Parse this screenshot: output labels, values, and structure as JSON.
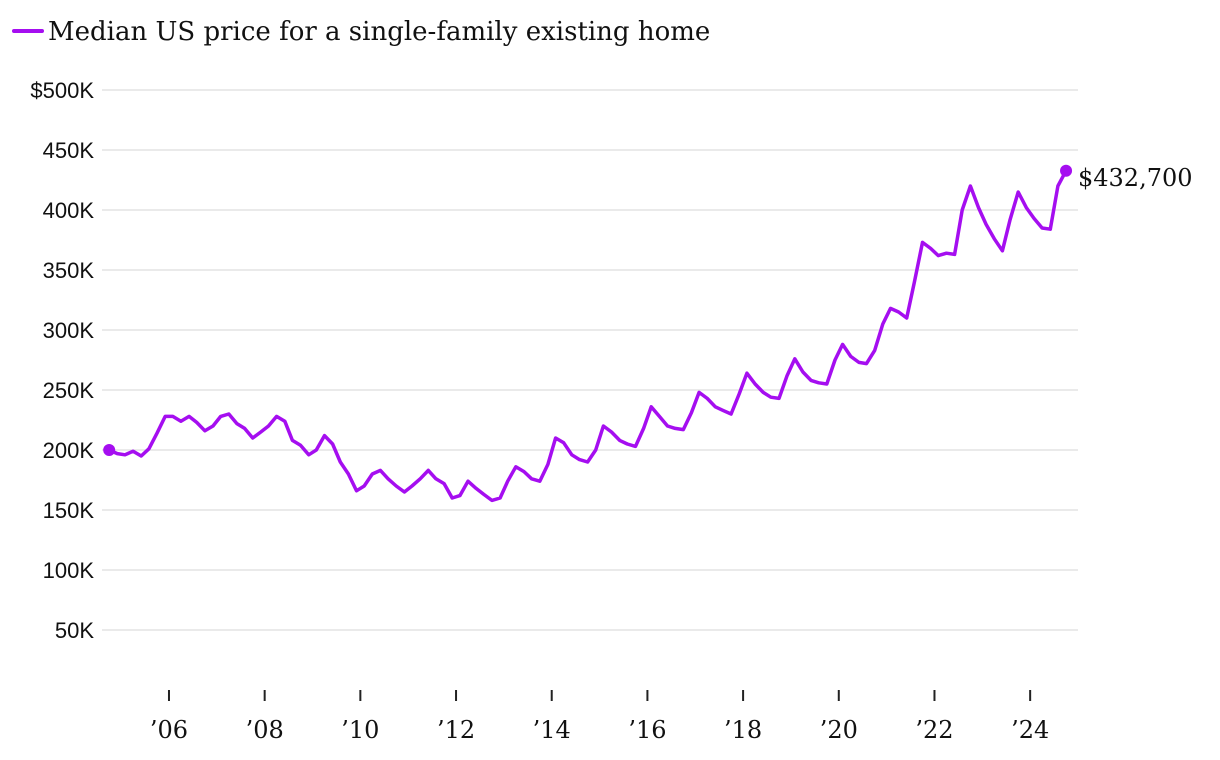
{
  "legend": {
    "label": "Median US price for a single-family existing home"
  },
  "colors": {
    "series": "#a50ef0",
    "grid": "#dedede",
    "text": "#111111"
  },
  "chart_data": {
    "type": "line",
    "title": "",
    "xlabel": "",
    "ylabel": "",
    "ylim": [
      0,
      500000
    ],
    "y_ticks": [
      50000,
      100000,
      150000,
      200000,
      250000,
      300000,
      350000,
      400000,
      450000,
      500000
    ],
    "y_tick_labels": [
      "50K",
      "100K",
      "150K",
      "200K",
      "250K",
      "300K",
      "350K",
      "400K",
      "450K",
      "$500K"
    ],
    "xlim": [
      2004.6,
      2025.0
    ],
    "x_ticks": [
      2006,
      2008,
      2010,
      2012,
      2014,
      2016,
      2018,
      2020,
      2022,
      2024
    ],
    "x_tick_labels": [
      "’06",
      "’08",
      "’10",
      "’12",
      "’14",
      "’16",
      "’18",
      "’20",
      "’22",
      "’24"
    ],
    "grid": true,
    "end_label": "$432,700",
    "series": [
      {
        "name": "Median US price for a single-family existing home",
        "points": [
          [
            2004.75,
            200000
          ],
          [
            2004.92,
            197000
          ],
          [
            2005.08,
            196000
          ],
          [
            2005.25,
            199000
          ],
          [
            2005.42,
            195000
          ],
          [
            2005.58,
            201000
          ],
          [
            2005.75,
            214000
          ],
          [
            2005.92,
            228000
          ],
          [
            2006.08,
            228000
          ],
          [
            2006.25,
            224000
          ],
          [
            2006.42,
            228000
          ],
          [
            2006.58,
            223000
          ],
          [
            2006.75,
            216000
          ],
          [
            2006.92,
            220000
          ],
          [
            2007.08,
            228000
          ],
          [
            2007.25,
            230000
          ],
          [
            2007.42,
            222000
          ],
          [
            2007.58,
            218000
          ],
          [
            2007.75,
            210000
          ],
          [
            2007.92,
            215000
          ],
          [
            2008.08,
            220000
          ],
          [
            2008.25,
            228000
          ],
          [
            2008.42,
            224000
          ],
          [
            2008.58,
            208000
          ],
          [
            2008.75,
            204000
          ],
          [
            2008.92,
            196000
          ],
          [
            2009.08,
            200000
          ],
          [
            2009.25,
            212000
          ],
          [
            2009.42,
            205000
          ],
          [
            2009.58,
            190000
          ],
          [
            2009.75,
            180000
          ],
          [
            2009.92,
            166000
          ],
          [
            2010.08,
            170000
          ],
          [
            2010.25,
            180000
          ],
          [
            2010.42,
            183000
          ],
          [
            2010.58,
            176000
          ],
          [
            2010.75,
            170000
          ],
          [
            2010.92,
            165000
          ],
          [
            2011.08,
            170000
          ],
          [
            2011.25,
            176000
          ],
          [
            2011.42,
            183000
          ],
          [
            2011.58,
            176000
          ],
          [
            2011.75,
            172000
          ],
          [
            2011.92,
            160000
          ],
          [
            2012.08,
            162000
          ],
          [
            2012.25,
            174000
          ],
          [
            2012.42,
            168000
          ],
          [
            2012.58,
            163000
          ],
          [
            2012.75,
            158000
          ],
          [
            2012.92,
            160000
          ],
          [
            2013.08,
            174000
          ],
          [
            2013.25,
            186000
          ],
          [
            2013.42,
            182000
          ],
          [
            2013.58,
            176000
          ],
          [
            2013.75,
            174000
          ],
          [
            2013.92,
            188000
          ],
          [
            2014.08,
            210000
          ],
          [
            2014.25,
            206000
          ],
          [
            2014.42,
            196000
          ],
          [
            2014.58,
            192000
          ],
          [
            2014.75,
            190000
          ],
          [
            2014.92,
            200000
          ],
          [
            2015.08,
            220000
          ],
          [
            2015.25,
            215000
          ],
          [
            2015.42,
            208000
          ],
          [
            2015.58,
            205000
          ],
          [
            2015.75,
            203000
          ],
          [
            2015.92,
            218000
          ],
          [
            2016.08,
            236000
          ],
          [
            2016.25,
            228000
          ],
          [
            2016.42,
            220000
          ],
          [
            2016.58,
            218000
          ],
          [
            2016.75,
            217000
          ],
          [
            2016.92,
            231000
          ],
          [
            2017.08,
            248000
          ],
          [
            2017.25,
            243000
          ],
          [
            2017.42,
            236000
          ],
          [
            2017.58,
            233000
          ],
          [
            2017.75,
            230000
          ],
          [
            2017.92,
            247000
          ],
          [
            2018.08,
            264000
          ],
          [
            2018.25,
            255000
          ],
          [
            2018.42,
            248000
          ],
          [
            2018.58,
            244000
          ],
          [
            2018.75,
            243000
          ],
          [
            2018.92,
            262000
          ],
          [
            2019.08,
            276000
          ],
          [
            2019.25,
            265000
          ],
          [
            2019.42,
            258000
          ],
          [
            2019.58,
            256000
          ],
          [
            2019.75,
            255000
          ],
          [
            2019.92,
            275000
          ],
          [
            2020.08,
            288000
          ],
          [
            2020.25,
            278000
          ],
          [
            2020.42,
            273000
          ],
          [
            2020.58,
            272000
          ],
          [
            2020.75,
            283000
          ],
          [
            2020.92,
            305000
          ],
          [
            2021.08,
            318000
          ],
          [
            2021.25,
            315000
          ],
          [
            2021.42,
            310000
          ],
          [
            2021.58,
            340000
          ],
          [
            2021.75,
            373000
          ],
          [
            2021.92,
            368000
          ],
          [
            2022.08,
            362000
          ],
          [
            2022.25,
            364000
          ],
          [
            2022.42,
            363000
          ],
          [
            2022.58,
            400000
          ],
          [
            2022.75,
            420000
          ],
          [
            2022.92,
            402000
          ],
          [
            2023.08,
            388000
          ],
          [
            2023.25,
            376000
          ],
          [
            2023.42,
            366000
          ],
          [
            2023.58,
            392000
          ],
          [
            2023.75,
            415000
          ],
          [
            2023.92,
            402000
          ],
          [
            2024.08,
            393000
          ],
          [
            2024.25,
            385000
          ],
          [
            2024.42,
            384000
          ],
          [
            2024.58,
            420000
          ],
          [
            2024.75,
            432700
          ]
        ]
      }
    ]
  }
}
